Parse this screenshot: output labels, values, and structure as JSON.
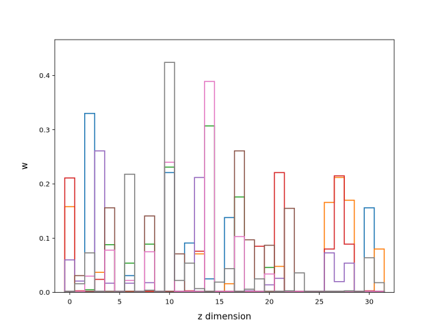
{
  "chart_data": {
    "type": "step-histogram",
    "title": "",
    "xlabel": "z dimension",
    "ylabel": "w",
    "xlim": [
      -1.5,
      32.5
    ],
    "ylim": [
      0,
      0.466
    ],
    "x_ticks": [
      0,
      5,
      10,
      15,
      20,
      25,
      30
    ],
    "y_ticks": [
      0.0,
      0.1,
      0.2,
      0.3,
      0.4
    ],
    "y_tick_labels": [
      "0.0",
      "0.1",
      "0.2",
      "0.3",
      "0.4"
    ],
    "bin_width": 1,
    "grid": false,
    "series": [
      {
        "color": "#1f77b4",
        "values": [
          0.002,
          0.003,
          0.33,
          0.002,
          0.002,
          0.002,
          0.031,
          0.002,
          0.002,
          0.002,
          0.221,
          0.002,
          0.091,
          0.002,
          0.025,
          0.002,
          0.138,
          0.002,
          0.002,
          0.002,
          0.002,
          0.002,
          0.002,
          0.002,
          0.002,
          0.002,
          0.002,
          0.002,
          0.002,
          0.002,
          0.156,
          0.002
        ]
      },
      {
        "color": "#ff7f0e",
        "values": [
          0.158,
          0.002,
          0.002,
          0.037,
          0.002,
          0.002,
          0.002,
          0.002,
          0.002,
          0.002,
          0.002,
          0.002,
          0.002,
          0.071,
          0.002,
          0.002,
          0.016,
          0.002,
          0.002,
          0.002,
          0.002,
          0.048,
          0.002,
          0.002,
          0.002,
          0.002,
          0.166,
          0.212,
          0.17,
          0.002,
          0.002,
          0.08
        ]
      },
      {
        "color": "#2ca02c",
        "values": [
          0.002,
          0.002,
          0.005,
          0.002,
          0.088,
          0.002,
          0.054,
          0.002,
          0.089,
          0.002,
          0.231,
          0.002,
          0.002,
          0.002,
          0.307,
          0.002,
          0.002,
          0.176,
          0.002,
          0.002,
          0.046,
          0.002,
          0.002,
          0.002,
          0.002,
          0.002,
          0.002,
          0.002,
          0.002,
          0.002,
          0.002,
          0.002
        ]
      },
      {
        "color": "#d62728",
        "values": [
          0.211,
          0.003,
          0.002,
          0.024,
          0.002,
          0.002,
          0.002,
          0.002,
          0.002,
          0.002,
          0.002,
          0.002,
          0.003,
          0.076,
          0.002,
          0.002,
          0.002,
          0.002,
          0.002,
          0.085,
          0.002,
          0.221,
          0.002,
          0.002,
          0.002,
          0.002,
          0.08,
          0.215,
          0.089,
          0.002,
          0.003,
          0.002
        ]
      },
      {
        "color": "#9467bd",
        "values": [
          0.06,
          0.021,
          0.002,
          0.261,
          0.017,
          0.002,
          0.017,
          0.002,
          0.018,
          0.002,
          0.002,
          0.002,
          0.002,
          0.212,
          0.002,
          0.002,
          0.002,
          0.002,
          0.003,
          0.002,
          0.014,
          0.026,
          0.002,
          0.002,
          0.002,
          0.002,
          0.073,
          0.02,
          0.054,
          0.002,
          0.002,
          0.002
        ]
      },
      {
        "color": "#8c564b",
        "values": [
          0.002,
          0.031,
          0.002,
          0.002,
          0.156,
          0.002,
          0.002,
          0.002,
          0.141,
          0.002,
          0.002,
          0.071,
          0.002,
          0.002,
          0.002,
          0.002,
          0.002,
          0.261,
          0.097,
          0.002,
          0.087,
          0.002,
          0.155,
          0.002,
          0.002,
          0.002,
          0.002,
          0.002,
          0.002,
          0.002,
          0.002,
          0.002
        ]
      },
      {
        "color": "#e377c2",
        "values": [
          0.002,
          0.002,
          0.03,
          0.002,
          0.078,
          0.002,
          0.022,
          0.002,
          0.075,
          0.002,
          0.24,
          0.002,
          0.002,
          0.002,
          0.389,
          0.002,
          0.002,
          0.103,
          0.002,
          0.002,
          0.034,
          0.002,
          0.002,
          0.002,
          0.002,
          0.002,
          0.002,
          0.002,
          0.002,
          0.002,
          0.002,
          0.002
        ]
      },
      {
        "color": "#7f7f7f",
        "values": [
          0.002,
          0.016,
          0.073,
          0.002,
          0.002,
          0.002,
          0.218,
          0.002,
          0.004,
          0.002,
          0.424,
          0.022,
          0.054,
          0.007,
          0.002,
          0.019,
          0.044,
          0.002,
          0.006,
          0.025,
          0.002,
          0.002,
          0.003,
          0.036,
          0.002,
          0.002,
          0.002,
          0.002,
          0.003,
          0.002,
          0.064,
          0.018
        ]
      }
    ]
  }
}
